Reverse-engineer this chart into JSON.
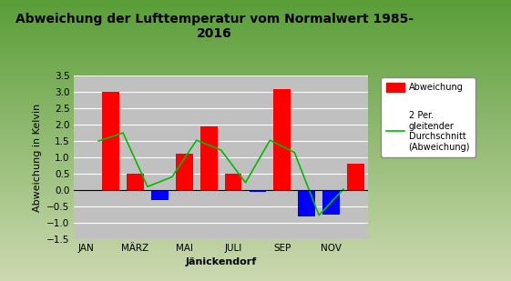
{
  "title": "Abweichung der Lufttemperatur vom Normalwert 1985-\n2016",
  "xlabel": "Jänickendorf",
  "ylabel": "Abweichung in Kelvin",
  "xtick_labels": [
    "JAN",
    "MÄRZ",
    "MAI",
    "JULI",
    "SEP",
    "NOV"
  ],
  "xtick_positions": [
    0,
    2,
    4,
    6,
    8,
    10
  ],
  "values": [
    0.0,
    3.0,
    0.5,
    -0.3,
    1.1,
    1.95,
    0.5,
    -0.05,
    3.1,
    -0.8,
    -0.75,
    0.8
  ],
  "bar_colors": [
    "#ff0000",
    "#ff0000",
    "#ff0000",
    "#0000ff",
    "#ff0000",
    "#ff0000",
    "#ff0000",
    "#0000ff",
    "#ff0000",
    "#0000ff",
    "#0000ff",
    "#ff0000"
  ],
  "moving_avg_color": "#00bb00",
  "ylim": [
    -1.5,
    3.5
  ],
  "yticks": [
    -1.5,
    -1.0,
    -0.5,
    0.0,
    0.5,
    1.0,
    1.5,
    2.0,
    2.5,
    3.0,
    3.5
  ],
  "plot_bg_color": "#c0c0c0",
  "outer_bg_top": "#ccd9b0",
  "outer_bg_bottom": "#7aaa50",
  "title_fontsize": 10,
  "axis_label_fontsize": 8,
  "tick_fontsize": 7.5,
  "legend_label_bar": "Abweichung",
  "legend_label_line": "2 Per.\ngleitender\nDurchschnitt\n(Abweichung)"
}
